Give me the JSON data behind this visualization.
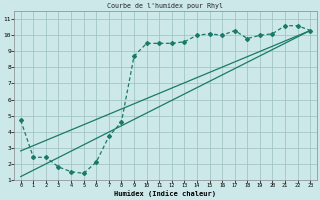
{
  "title": "Courbe de l'humidex pour Rhyl",
  "xlabel": "Humidex (Indice chaleur)",
  "bg_color": "#cce8e8",
  "line_color": "#1a7a6a",
  "xlim": [
    -0.5,
    23.5
  ],
  "ylim": [
    1,
    11.5
  ],
  "xticks": [
    0,
    1,
    2,
    3,
    4,
    5,
    6,
    7,
    8,
    9,
    10,
    11,
    12,
    13,
    14,
    15,
    16,
    17,
    18,
    19,
    20,
    21,
    22,
    23
  ],
  "yticks": [
    1,
    2,
    3,
    4,
    5,
    6,
    7,
    8,
    9,
    10,
    11
  ],
  "main_x": [
    0,
    1,
    2,
    3,
    4,
    5,
    6,
    7,
    8,
    9,
    10,
    11,
    12,
    13,
    14,
    15,
    16,
    17,
    18,
    19,
    20,
    21,
    22,
    23
  ],
  "main_y": [
    4.7,
    2.4,
    2.4,
    1.8,
    1.5,
    1.4,
    2.1,
    3.7,
    4.6,
    8.7,
    9.5,
    9.5,
    9.5,
    9.6,
    10.0,
    10.1,
    10.0,
    10.3,
    9.8,
    10.0,
    10.1,
    10.6,
    10.6,
    10.3
  ],
  "line1_x": [
    0,
    23
  ],
  "line1_y": [
    1.2,
    10.3
  ],
  "line2_x": [
    0,
    23
  ],
  "line2_y": [
    2.8,
    10.3
  ]
}
